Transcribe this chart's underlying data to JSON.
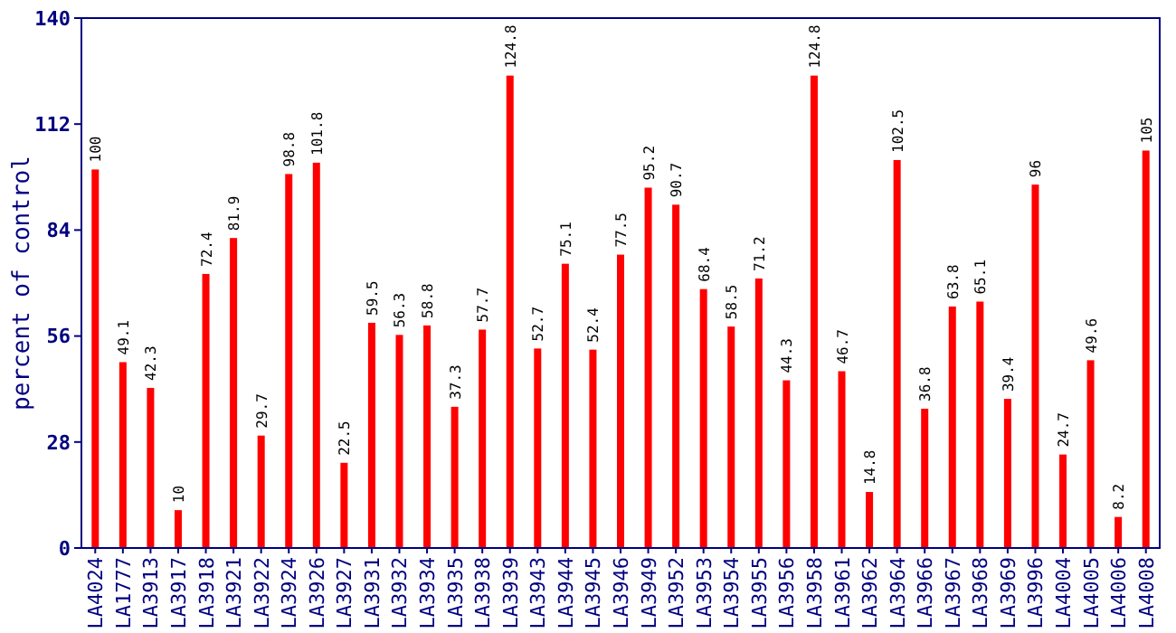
{
  "chart_data": {
    "type": "bar",
    "ylabel": "percent of control",
    "categories": [
      "LA4024",
      "LA1777",
      "LA3913",
      "LA3917",
      "LA3918",
      "LA3921",
      "LA3922",
      "LA3924",
      "LA3926",
      "LA3927",
      "LA3931",
      "LA3932",
      "LA3934",
      "LA3935",
      "LA3938",
      "LA3939",
      "LA3943",
      "LA3944",
      "LA3945",
      "LA3946",
      "LA3949",
      "LA3952",
      "LA3953",
      "LA3954",
      "LA3955",
      "LA3956",
      "LA3958",
      "LA3961",
      "LA3962",
      "LA3964",
      "LA3966",
      "LA3967",
      "LA3968",
      "LA3969",
      "LA3996",
      "LA4004",
      "LA4005",
      "LA4006",
      "LA4008"
    ],
    "values": [
      100,
      49.1,
      42.3,
      10,
      72.4,
      81.9,
      29.7,
      98.8,
      101.8,
      22.5,
      59.5,
      56.3,
      58.8,
      37.3,
      57.7,
      124.8,
      52.7,
      75.1,
      52.4,
      77.5,
      95.2,
      90.7,
      68.4,
      58.5,
      71.2,
      44.3,
      124.8,
      46.7,
      14.8,
      102.5,
      36.8,
      63.8,
      65.1,
      39.4,
      96,
      24.7,
      49.6,
      8.2,
      105
    ],
    "color": "#ff0000",
    "ylim": [
      0,
      140
    ],
    "yticks": [
      0,
      28,
      56,
      84,
      112,
      140
    ],
    "data_labels": true
  }
}
